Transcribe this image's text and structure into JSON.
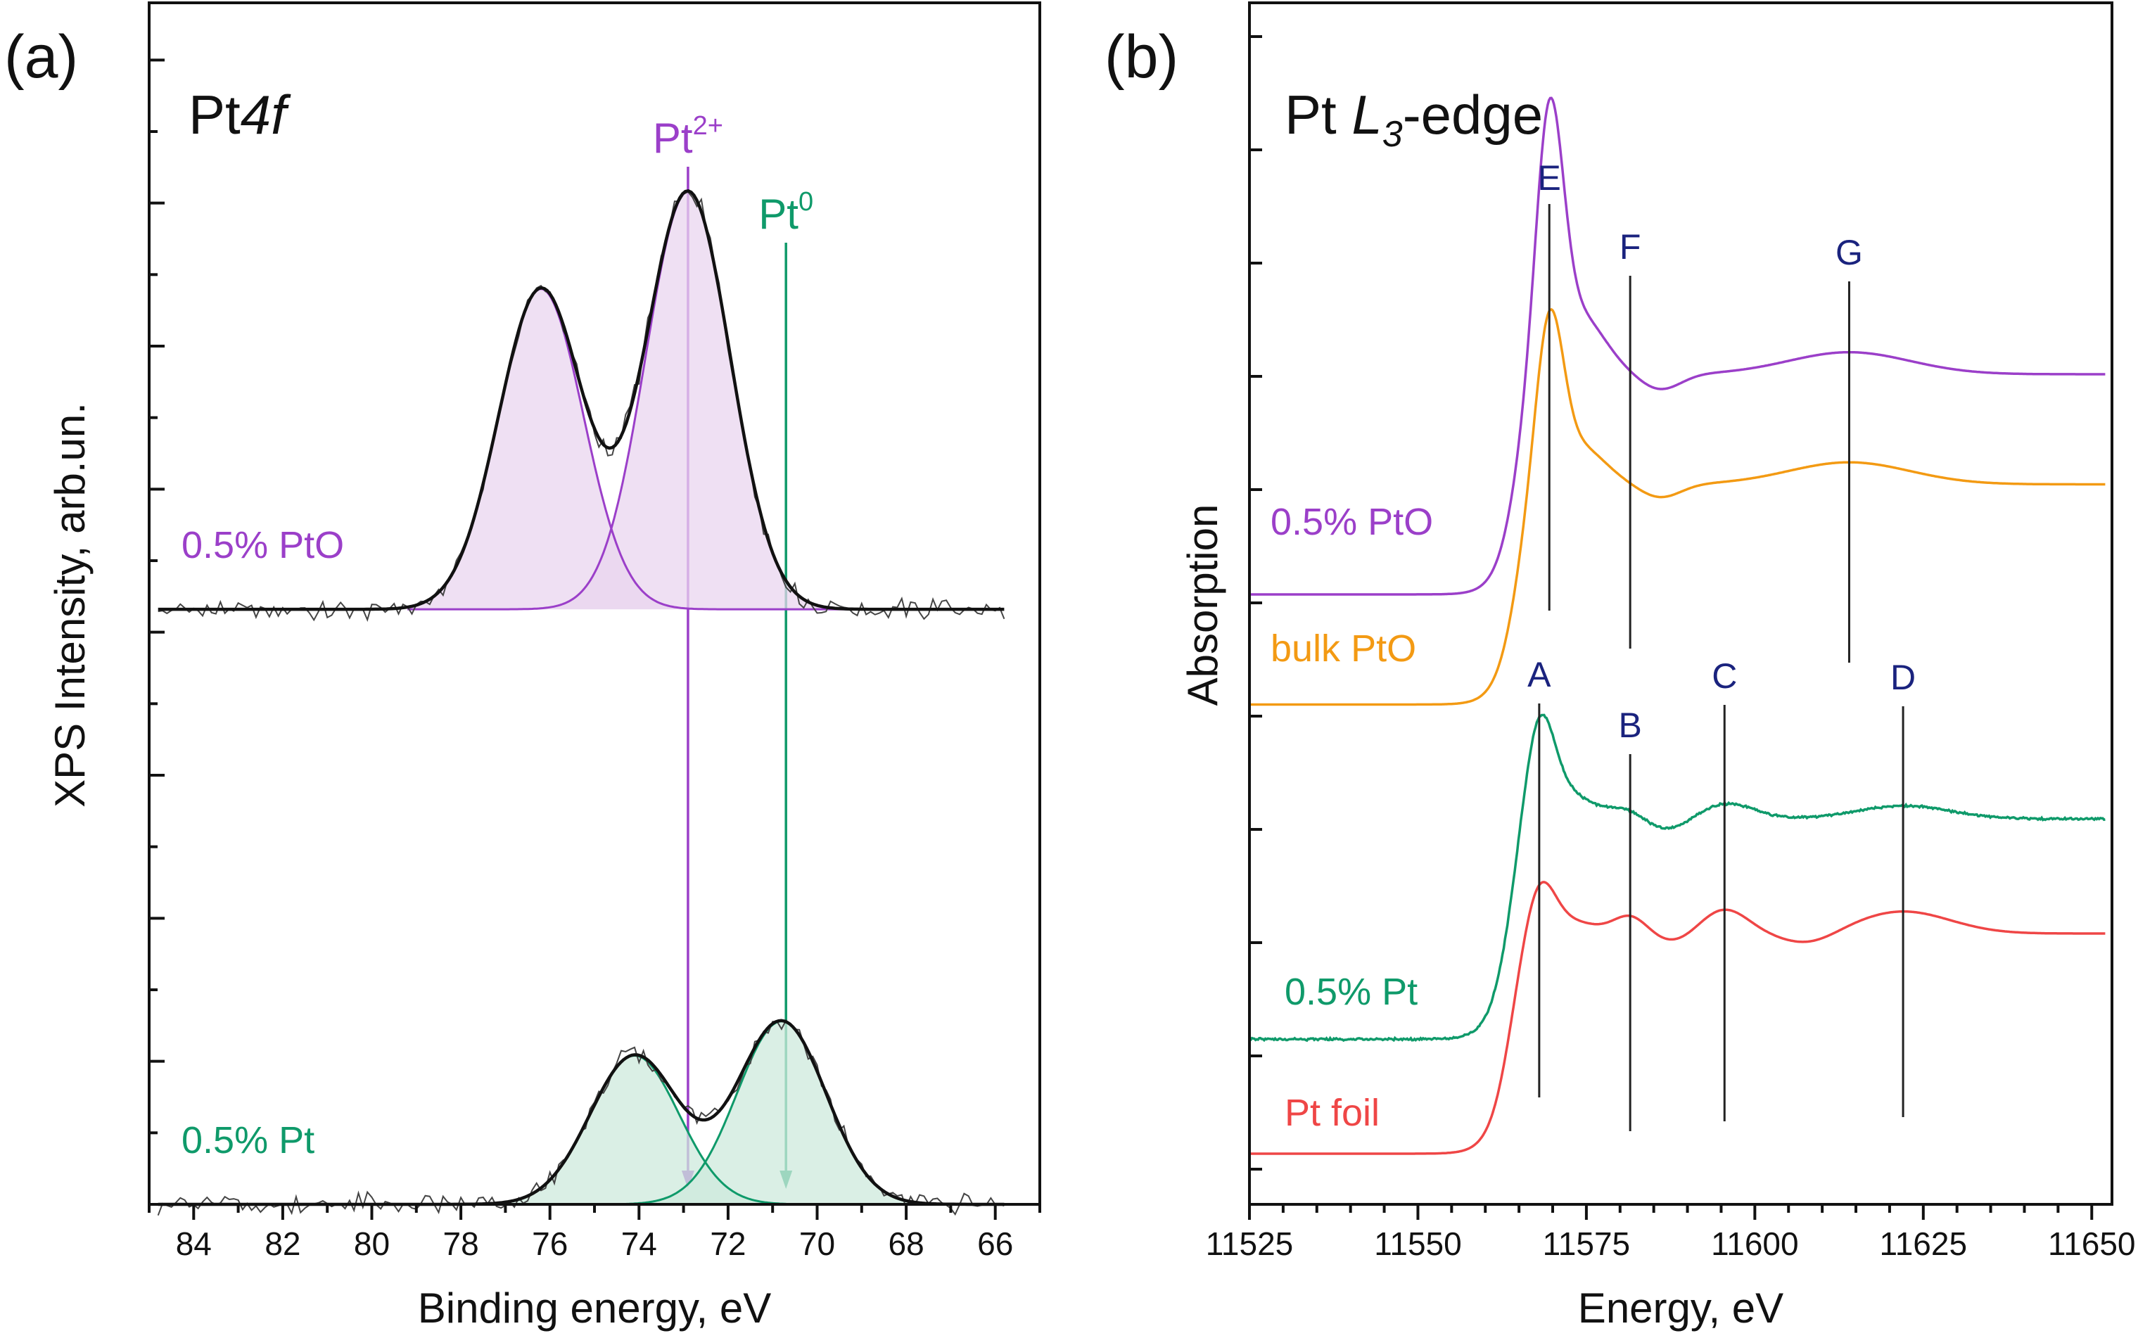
{
  "colors": {
    "pto_purple": "#9b3fc9",
    "pto_fill": "#e9d6ef",
    "pt_green": "#0f9a6a",
    "pt_fill": "#cdeadc",
    "bulk_orange": "#f39a13",
    "foil_red": "#ef4646",
    "peak_label_navy": "#1a237e",
    "axis_black": "#111111"
  },
  "chart_data": [
    {
      "panel_label": "(a)",
      "type": "line",
      "title": "Pt",
      "title_italic": "4f",
      "xlabel": "Binding energy, eV",
      "ylabel": "XPS Intensity, arb.un.",
      "xlim": [
        85,
        65
      ],
      "x_ticks": [
        84,
        82,
        80,
        78,
        76,
        74,
        72,
        70,
        68,
        66
      ],
      "x_tick_labels": [
        "84",
        "82",
        "80",
        "78",
        "76",
        "74",
        "72",
        "70",
        "68",
        "66"
      ],
      "y_tick_labels_shown": false,
      "ylim": [
        0,
        1.05
      ],
      "reference_lines": [
        {
          "base": "Pt",
          "sup": "2+",
          "energy": 72.9,
          "color": "#9b3fc9"
        },
        {
          "base": "Pt",
          "sup": "0",
          "energy": 70.7,
          "color": "#0f9a6a"
        }
      ],
      "series": [
        {
          "name": "0.5% PtO",
          "color": "#9b3fc9",
          "fill": "#e9d6ef",
          "baseline": 0.52,
          "components": [
            {
              "center": 76.2,
              "sigma": 0.95,
              "height": 0.28
            },
            {
              "center": 72.9,
              "sigma": 0.95,
              "height": 0.365
            }
          ]
        },
        {
          "name": "0.5% Pt",
          "color": "#0f9a6a",
          "fill": "#cdeadc",
          "baseline": 0.0,
          "components": [
            {
              "center": 74.1,
              "sigma": 1.0,
              "height": 0.13
            },
            {
              "center": 70.8,
              "sigma": 1.0,
              "height": 0.16
            }
          ]
        }
      ]
    },
    {
      "panel_label": "(b)",
      "type": "line",
      "title": "Pt ",
      "title_italic": "L",
      "title_sub": "3",
      "title_suffix": "-edge",
      "xlabel": "Energy, eV",
      "ylabel": "Absorption",
      "xlim": [
        11525,
        11653
      ],
      "x_ticks": [
        11525,
        11550,
        11575,
        11600,
        11625,
        11650
      ],
      "x_tick_labels": [
        "11525",
        "11550",
        "11575",
        "11600",
        "11625",
        "11650"
      ],
      "y_tick_labels_shown": false,
      "ylim": [
        0,
        5.2
      ],
      "series": [
        {
          "name": "0.5% PtO",
          "color": "#9b3fc9",
          "pre_edge": 2.54,
          "edge_jump": 1.0,
          "edge_center": 11564.5,
          "white_line": {
            "center": 11569.5,
            "sigma": 2.0,
            "height": 1.12
          },
          "features": [
            {
              "center": 11614,
              "sigma": 9,
              "height": 0.1
            },
            {
              "center": 11586,
              "sigma": 3,
              "height": -0.07
            }
          ]
        },
        {
          "name": "bulk PtO",
          "color": "#f39a13",
          "pre_edge": 2.04,
          "edge_jump": 1.0,
          "edge_center": 11564.5,
          "white_line": {
            "center": 11569.5,
            "sigma": 2.0,
            "height": 0.72
          },
          "features": [
            {
              "center": 11614,
              "sigma": 9,
              "height": 0.1
            },
            {
              "center": 11586,
              "sigma": 3,
              "height": -0.06
            }
          ]
        },
        {
          "name": "0.5% Pt",
          "color": "#0f9a6a",
          "pre_edge": 0.52,
          "edge_jump": 1.0,
          "edge_center": 11563.5,
          "white_line": {
            "center": 11568.0,
            "sigma": 2.2,
            "height": 0.45
          },
          "features": [
            {
              "center": 11581,
              "sigma": 2.5,
              "height": 0.04
            },
            {
              "center": 11596,
              "sigma": 4,
              "height": 0.07
            },
            {
              "center": 11622,
              "sigma": 7,
              "height": 0.06
            },
            {
              "center": 11587,
              "sigma": 3,
              "height": -0.05
            }
          ]
        },
        {
          "name": "Pt foil",
          "color": "#ef4646",
          "pre_edge": 0.0,
          "edge_jump": 1.0,
          "edge_center": 11563.5,
          "white_line": {
            "center": 11568.0,
            "sigma": 2.2,
            "height": 0.24
          },
          "features": [
            {
              "center": 11581.5,
              "sigma": 2.5,
              "height": 0.08
            },
            {
              "center": 11595.5,
              "sigma": 3.5,
              "height": 0.11
            },
            {
              "center": 11622,
              "sigma": 7,
              "height": 0.1
            },
            {
              "center": 11588,
              "sigma": 3,
              "height": -0.04
            },
            {
              "center": 11608,
              "sigma": 4,
              "height": -0.05
            }
          ]
        }
      ],
      "peak_markers": [
        {
          "label": "E",
          "energy": 11569.5
        },
        {
          "label": "F",
          "energy": 11581.5
        },
        {
          "label": "G",
          "energy": 11614.0
        },
        {
          "label": "A",
          "energy": 11568.0
        },
        {
          "label": "B",
          "energy": 11581.5
        },
        {
          "label": "C",
          "energy": 11595.5
        },
        {
          "label": "D",
          "energy": 11622.0
        }
      ]
    }
  ]
}
